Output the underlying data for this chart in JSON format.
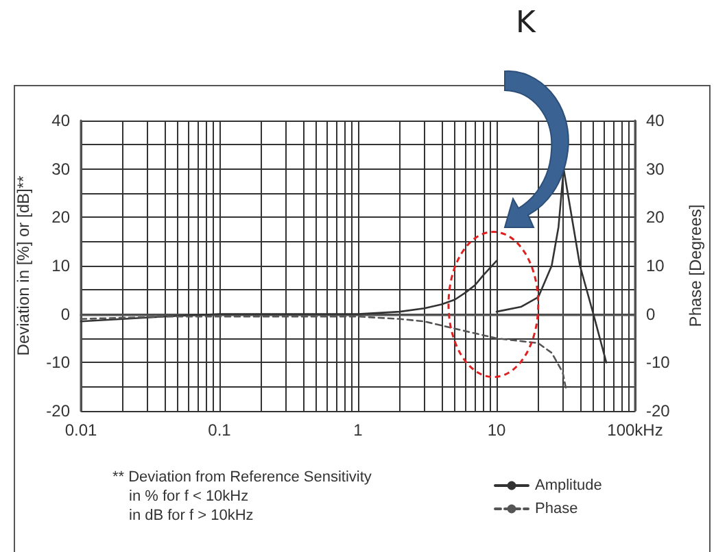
{
  "chart_data": {
    "type": "line",
    "ylabel": "Deviation in [%] or [dB]**",
    "y2label": "Phase [Degrees]",
    "annotations": [
      "K",
      "** Deviation from Reference Sensitivity",
      "in % for f < 10kHz",
      "in dB for f > 10kHz"
    ],
    "series": [
      {
        "name": "Amplitude",
        "color": "#333333",
        "line_style": "solid",
        "x": [
          0.01,
          0.02,
          0.04,
          0.1,
          0.3,
          1,
          2,
          3,
          4,
          5,
          6,
          7,
          8,
          10
        ],
        "values": [
          -1.5,
          -1,
          -0.5,
          0,
          0,
          0,
          0.5,
          1.2,
          2,
          3,
          4.5,
          6,
          8,
          11
        ]
      },
      {
        "color": "#333333",
        "line_style": "solid",
        "x": [
          10,
          15,
          20,
          25,
          28,
          30.5,
          34,
          40,
          50,
          62
        ],
        "values": [
          0.5,
          1.5,
          3.5,
          10,
          18,
          30,
          22,
          10,
          0,
          -10
        ]
      },
      {
        "name": "Phase",
        "color": "#555555",
        "line_style": "dashed",
        "x": [
          0.01,
          0.04,
          0.1,
          1,
          2,
          3,
          5,
          10,
          20,
          25,
          30,
          32
        ],
        "values": [
          -1,
          -0.5,
          -0.5,
          -0.5,
          -1,
          -1.5,
          -3,
          -5,
          -6,
          -8,
          -12,
          -16
        ]
      }
    ],
    "log": "x",
    "xlim": [
      0.01,
      100
    ],
    "xticks": [
      0.01,
      {
        "value": 0.02,
        "label": null
      },
      {
        "value": 0.03,
        "label": null
      },
      {
        "value": 0.04,
        "label": null
      },
      {
        "value": 0.05,
        "label": null
      },
      {
        "value": 0.06,
        "label": null
      },
      {
        "value": 0.07,
        "label": null
      },
      {
        "value": 0.08,
        "label": null
      },
      {
        "value": 0.09,
        "label": null
      },
      0.1,
      {
        "value": 0.2,
        "label": null
      },
      {
        "value": 0.3,
        "label": null
      },
      {
        "value": 0.4,
        "label": null
      },
      {
        "value": 0.5,
        "label": null
      },
      {
        "value": 0.6,
        "label": null
      },
      {
        "value": 0.7,
        "label": null
      },
      {
        "value": 0.8,
        "label": null
      },
      {
        "value": 0.9,
        "label": null
      },
      1,
      {
        "value": 2,
        "label": null
      },
      {
        "value": 3,
        "label": null
      },
      {
        "value": 4,
        "label": null
      },
      {
        "value": 5,
        "label": null
      },
      {
        "value": 6,
        "label": null
      },
      {
        "value": 7,
        "label": null
      },
      {
        "value": 8,
        "label": null
      },
      {
        "value": 9,
        "label": null
      },
      10,
      {
        "value": 20,
        "label": null
      },
      {
        "value": 30,
        "label": null
      },
      {
        "value": 40,
        "label": null
      },
      {
        "value": 50,
        "label": null
      },
      {
        "value": 60,
        "label": null
      },
      {
        "value": 70,
        "label": null
      },
      {
        "value": 80,
        "label": null
      },
      {
        "value": 90,
        "label": null
      },
      {
        "value": 100,
        "label": "100kHz"
      }
    ],
    "ylim": [
      -20,
      40
    ],
    "yticks": [
      -20,
      -10,
      0,
      10,
      20,
      30,
      40
    ],
    "y2lim": [
      -20,
      40
    ],
    "y2ticks": [
      -20,
      -10,
      0,
      10,
      20,
      30,
      40
    ],
    "grid": true,
    "legend": "bottom right",
    "marker": "none"
  }
}
